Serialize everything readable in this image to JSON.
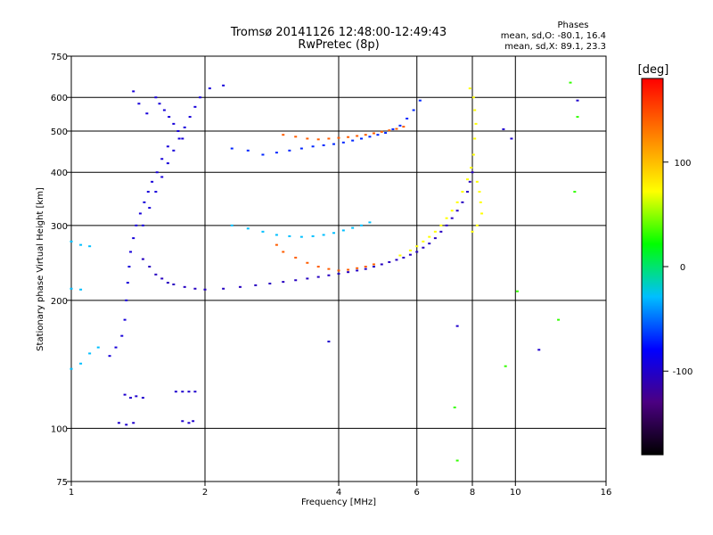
{
  "chart_data": {
    "type": "scatter",
    "title": "Tromsø 20141126 12:48:00-12:49:43",
    "subtitle": "RwPretec (8p)",
    "stats_header": "Phases",
    "stats_o": "mean, sd,O: -80.1, 16.4",
    "stats_x": "mean, sd,X:  89.1, 23.3",
    "xlabel": "Frequency [MHz]",
    "ylabel": "Stationary phase Virtual Height [km]",
    "xscale": "log",
    "yscale": "log",
    "xlim": [
      1,
      16
    ],
    "ylim": [
      75,
      750
    ],
    "xticks": [
      1,
      2,
      4,
      6,
      8,
      10,
      16
    ],
    "xtick_labels": [
      "1",
      "2",
      "4",
      "6",
      "8",
      "10",
      "16"
    ],
    "yticks": [
      75,
      100,
      200,
      300,
      400,
      500,
      600,
      750
    ],
    "ytick_labels": [
      "75",
      "100",
      "200",
      "300",
      "400",
      "500",
      "600",
      "750"
    ],
    "colorbar": {
      "label": "[deg]",
      "range": [
        -180,
        180
      ],
      "ticks": [
        100,
        0,
        -100
      ],
      "tick_labels": [
        "100",
        "0",
        "-100"
      ]
    },
    "series": [
      {
        "color_phase": -95,
        "points": [
          [
            1.55,
            600
          ],
          [
            1.58,
            580
          ],
          [
            1.62,
            560
          ],
          [
            1.66,
            540
          ],
          [
            1.7,
            520
          ],
          [
            1.74,
            500
          ],
          [
            1.78,
            480
          ],
          [
            1.65,
            460
          ],
          [
            1.6,
            430
          ],
          [
            1.56,
            400
          ],
          [
            1.52,
            380
          ],
          [
            1.49,
            360
          ],
          [
            1.46,
            340
          ],
          [
            1.43,
            320
          ],
          [
            1.4,
            300
          ],
          [
            1.38,
            280
          ],
          [
            1.36,
            260
          ],
          [
            1.35,
            240
          ],
          [
            1.34,
            220
          ],
          [
            1.33,
            200
          ],
          [
            1.32,
            180
          ],
          [
            1.3,
            165
          ],
          [
            1.26,
            155
          ],
          [
            1.22,
            148
          ],
          [
            1.45,
            300
          ],
          [
            1.5,
            330
          ],
          [
            1.55,
            360
          ],
          [
            1.6,
            390
          ],
          [
            1.65,
            420
          ],
          [
            1.7,
            450
          ],
          [
            1.75,
            480
          ],
          [
            1.8,
            510
          ],
          [
            1.85,
            540
          ],
          [
            1.9,
            570
          ],
          [
            1.95,
            600
          ],
          [
            2.05,
            630
          ],
          [
            2.2,
            640
          ],
          [
            1.38,
            620
          ],
          [
            1.42,
            580
          ],
          [
            1.48,
            550
          ]
        ]
      },
      {
        "color_phase": -105,
        "points": [
          [
            1.45,
            250
          ],
          [
            1.5,
            240
          ],
          [
            1.55,
            230
          ],
          [
            1.6,
            225
          ],
          [
            1.65,
            220
          ],
          [
            1.7,
            218
          ],
          [
            1.8,
            215
          ],
          [
            1.9,
            213
          ],
          [
            2.0,
            212
          ],
          [
            2.2,
            213
          ],
          [
            2.4,
            215
          ],
          [
            2.6,
            217
          ],
          [
            2.8,
            219
          ],
          [
            3.0,
            221
          ],
          [
            3.2,
            223
          ],
          [
            3.4,
            225
          ],
          [
            3.6,
            227
          ],
          [
            3.8,
            229
          ],
          [
            4.0,
            231
          ],
          [
            4.2,
            233
          ],
          [
            4.4,
            235
          ],
          [
            4.6,
            237
          ],
          [
            4.8,
            240
          ],
          [
            5.0,
            243
          ],
          [
            5.2,
            246
          ],
          [
            5.4,
            249
          ],
          [
            5.6,
            252
          ],
          [
            5.8,
            256
          ],
          [
            6.0,
            260
          ],
          [
            6.2,
            266
          ],
          [
            6.4,
            272
          ],
          [
            6.6,
            280
          ],
          [
            6.8,
            290
          ],
          [
            7.0,
            300
          ],
          [
            7.2,
            312
          ],
          [
            7.4,
            325
          ],
          [
            7.6,
            340
          ],
          [
            7.8,
            360
          ],
          [
            7.9,
            380
          ],
          [
            8.0,
            400
          ]
        ]
      },
      {
        "color_phase": -70,
        "points": [
          [
            2.7,
            440
          ],
          [
            2.9,
            445
          ],
          [
            3.1,
            450
          ],
          [
            3.3,
            455
          ],
          [
            3.5,
            460
          ],
          [
            3.7,
            463
          ],
          [
            3.9,
            466
          ],
          [
            4.1,
            470
          ],
          [
            4.3,
            475
          ],
          [
            4.5,
            480
          ],
          [
            4.7,
            485
          ],
          [
            4.9,
            490
          ],
          [
            5.1,
            495
          ],
          [
            5.3,
            505
          ],
          [
            5.5,
            515
          ],
          [
            5.7,
            535
          ],
          [
            5.9,
            560
          ],
          [
            6.1,
            590
          ],
          [
            2.5,
            450
          ],
          [
            2.3,
            455
          ]
        ]
      },
      {
        "color_phase": 140,
        "points": [
          [
            3.0,
            490
          ],
          [
            3.2,
            485
          ],
          [
            3.4,
            480
          ],
          [
            3.6,
            478
          ],
          [
            3.8,
            480
          ],
          [
            4.0,
            482
          ],
          [
            4.2,
            484
          ],
          [
            4.4,
            487
          ],
          [
            4.6,
            490
          ],
          [
            4.8,
            494
          ],
          [
            5.0,
            498
          ],
          [
            5.2,
            502
          ],
          [
            5.4,
            506
          ],
          [
            5.6,
            512
          ],
          [
            2.9,
            270
          ],
          [
            3.0,
            260
          ],
          [
            3.2,
            252
          ],
          [
            3.4,
            245
          ],
          [
            3.6,
            240
          ],
          [
            3.8,
            237
          ],
          [
            4.0,
            235
          ],
          [
            4.2,
            236
          ],
          [
            4.4,
            238
          ],
          [
            4.6,
            240
          ],
          [
            4.8,
            243
          ]
        ]
      },
      {
        "color_phase": 70,
        "points": [
          [
            5.5,
            255
          ],
          [
            5.8,
            262
          ],
          [
            6.0,
            268
          ],
          [
            6.2,
            275
          ],
          [
            6.4,
            282
          ],
          [
            6.6,
            290
          ],
          [
            6.8,
            300
          ],
          [
            7.0,
            312
          ],
          [
            7.2,
            325
          ],
          [
            7.4,
            340
          ],
          [
            7.6,
            360
          ],
          [
            7.8,
            385
          ],
          [
            7.95,
            410
          ],
          [
            8.05,
            440
          ],
          [
            8.1,
            480
          ],
          [
            8.15,
            520
          ],
          [
            8.1,
            560
          ],
          [
            8.05,
            600
          ],
          [
            7.9,
            630
          ],
          [
            8.2,
            380
          ],
          [
            8.3,
            360
          ],
          [
            8.35,
            340
          ],
          [
            8.4,
            320
          ],
          [
            8.2,
            300
          ],
          [
            8.0,
            290
          ]
        ]
      },
      {
        "color_phase": -30,
        "points": [
          [
            2.3,
            300
          ],
          [
            2.5,
            295
          ],
          [
            2.7,
            290
          ],
          [
            2.9,
            285
          ],
          [
            3.1,
            283
          ],
          [
            3.3,
            282
          ],
          [
            3.5,
            283
          ],
          [
            3.7,
            285
          ],
          [
            3.9,
            288
          ],
          [
            4.1,
            292
          ],
          [
            4.3,
            296
          ],
          [
            4.5,
            300
          ],
          [
            4.7,
            305
          ],
          [
            1.0,
            275
          ],
          [
            1.05,
            270
          ],
          [
            1.1,
            268
          ],
          [
            1.0,
            213
          ],
          [
            1.05,
            212
          ],
          [
            1.0,
            138
          ],
          [
            1.05,
            142
          ],
          [
            1.1,
            150
          ],
          [
            1.15,
            155
          ]
        ]
      },
      {
        "color_phase": -100,
        "points": [
          [
            1.32,
            120
          ],
          [
            1.36,
            118
          ],
          [
            1.4,
            119
          ],
          [
            1.45,
            118
          ],
          [
            1.72,
            122
          ],
          [
            1.78,
            122
          ],
          [
            1.84,
            122
          ],
          [
            1.9,
            122
          ],
          [
            1.28,
            103
          ],
          [
            1.33,
            102
          ],
          [
            1.38,
            103
          ],
          [
            1.78,
            104
          ],
          [
            1.84,
            103
          ],
          [
            1.88,
            104
          ],
          [
            3.8,
            160
          ],
          [
            7.4,
            174
          ],
          [
            9.8,
            480
          ],
          [
            11.3,
            153
          ],
          [
            13.8,
            590
          ],
          [
            9.4,
            505
          ]
        ]
      },
      {
        "color_phase": 30,
        "points": [
          [
            7.3,
            112
          ],
          [
            7.4,
            84
          ],
          [
            10.1,
            210
          ],
          [
            12.5,
            180
          ],
          [
            13.3,
            650
          ],
          [
            13.6,
            360
          ],
          [
            9.5,
            140
          ],
          [
            13.8,
            540
          ]
        ]
      }
    ]
  }
}
